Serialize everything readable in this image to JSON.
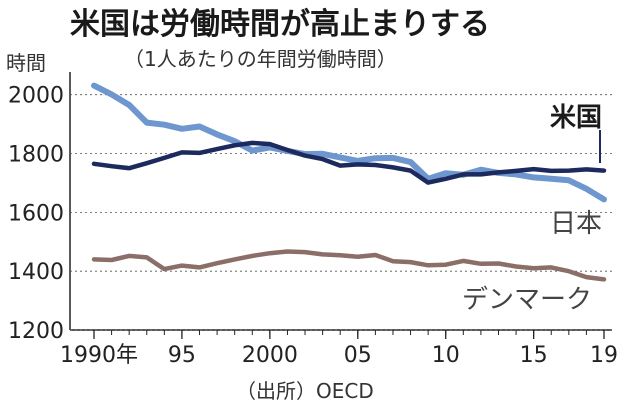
{
  "title": "米国は労働時間が高止まりする",
  "subtitle": "（1人あたりの年間労働時間）",
  "source": "（出所）OECD",
  "chart_data": {
    "type": "line",
    "ylabel": "時間",
    "ylim": [
      1200,
      2050
    ],
    "yticks": [
      1200,
      1400,
      1600,
      1800,
      2000
    ],
    "xlim": [
      1990,
      2019
    ],
    "xticks": [
      {
        "value": 1990,
        "label": "1990年"
      },
      {
        "value": 1995,
        "label": "95"
      },
      {
        "value": 2000,
        "label": "2000"
      },
      {
        "value": 2005,
        "label": "05"
      },
      {
        "value": 2010,
        "label": "10"
      },
      {
        "value": 2015,
        "label": "15"
      },
      {
        "value": 2019,
        "label": "19"
      }
    ],
    "x": [
      1990,
      1991,
      1992,
      1993,
      1994,
      1995,
      1996,
      1997,
      1998,
      1999,
      2000,
      2001,
      2002,
      2003,
      2004,
      2005,
      2006,
      2007,
      2008,
      2009,
      2010,
      2011,
      2012,
      2013,
      2014,
      2015,
      2016,
      2017,
      2018,
      2019
    ],
    "series": [
      {
        "name": "日本",
        "color": "#6e96cf",
        "values": [
          2031,
          2001,
          1965,
          1905,
          1898,
          1884,
          1892,
          1865,
          1842,
          1810,
          1821,
          1809,
          1798,
          1799,
          1787,
          1775,
          1784,
          1785,
          1771,
          1714,
          1733,
          1728,
          1745,
          1734,
          1729,
          1719,
          1714,
          1709,
          1680,
          1644
        ]
      },
      {
        "name": "米国",
        "color": "#1d2a5e",
        "values": [
          1765,
          1757,
          1750,
          1767,
          1785,
          1804,
          1802,
          1815,
          1828,
          1836,
          1832,
          1812,
          1793,
          1781,
          1759,
          1763,
          1761,
          1753,
          1742,
          1701,
          1714,
          1729,
          1729,
          1736,
          1741,
          1747,
          1741,
          1742,
          1746,
          1742
        ]
      },
      {
        "name": "デンマーク",
        "color": "#8c6e68",
        "values": [
          1440,
          1438,
          1452,
          1447,
          1407,
          1419,
          1413,
          1427,
          1440,
          1452,
          1461,
          1467,
          1465,
          1457,
          1454,
          1449,
          1455,
          1434,
          1431,
          1420,
          1422,
          1435,
          1425,
          1426,
          1416,
          1410,
          1413,
          1400,
          1380,
          1372
        ]
      }
    ]
  }
}
